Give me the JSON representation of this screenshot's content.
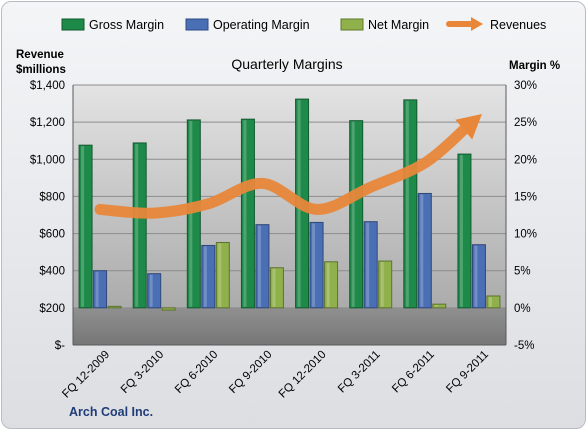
{
  "chart_data": {
    "type": "bar",
    "title": "Quarterly Margins",
    "company": "Arch Coal Inc.",
    "y_left_title_line1": "Revenue",
    "y_left_title_line2": "$millions",
    "y_right_title": "Margin %",
    "categories": [
      "FQ 12-2009",
      "FQ 3-2010",
      "FQ 6-2010",
      "FQ 9-2010",
      "FQ 12-2010",
      "FQ 3-2011",
      "FQ 6-2011",
      "FQ 9-2011"
    ],
    "y_left": {
      "min": 0,
      "max": 1400,
      "ticks": [
        "$-",
        "$200",
        "$400",
        "$600",
        "$800",
        "$1,000",
        "$1,200",
        "$1,400"
      ]
    },
    "y_right": {
      "min": -5,
      "max": 30,
      "ticks": [
        "-5%",
        "0%",
        "5%",
        "10%",
        "15%",
        "20%",
        "25%",
        "30%"
      ]
    },
    "series": [
      {
        "name": "Gross Margin",
        "axis": "right",
        "kind": "bar",
        "color": "#1e8a4a",
        "values": [
          21.9,
          22.2,
          25.3,
          25.4,
          28.1,
          25.2,
          28.0,
          20.7
        ]
      },
      {
        "name": "Operating Margin",
        "axis": "right",
        "kind": "bar",
        "color": "#4a6fb5",
        "values": [
          5.0,
          4.6,
          8.4,
          11.2,
          11.5,
          11.6,
          15.4,
          8.5
        ]
      },
      {
        "name": "Net Margin",
        "axis": "right",
        "kind": "bar",
        "color": "#8fb04a",
        "values": [
          0.2,
          -0.3,
          8.8,
          5.4,
          6.2,
          6.3,
          0.5,
          1.6
        ]
      },
      {
        "name": "Revenues",
        "axis": "left",
        "kind": "arrow-line",
        "color": "#e8873a",
        "values": [
          730,
          710,
          760,
          870,
          730,
          850,
          980,
          1230
        ]
      }
    ],
    "legend_position": "top",
    "grid": true
  }
}
